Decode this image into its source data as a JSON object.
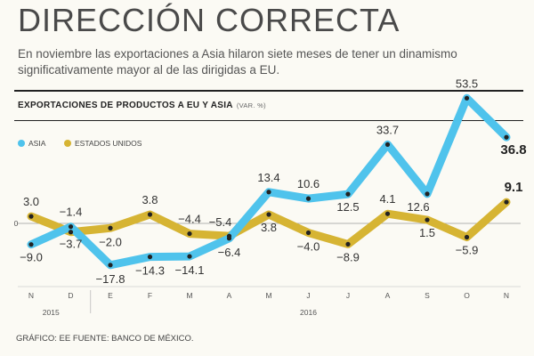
{
  "header": {
    "title": "DIRECCIÓN CORRECTA",
    "subtitle": "En noviembre las exportaciones a Asia hilaron siete meses de tener un dinamismo significativamente mayor al de las dirigidas a EU."
  },
  "footer": {
    "source": "GRÁFICO: EE  FUENTE: BANCO DE MÉXICO."
  },
  "colors": {
    "asia": "#4fc3ec",
    "eu": "#d6b433",
    "axis": "#999999"
  },
  "chart_data": {
    "type": "line",
    "title": "EXPORTACIONES DE PRODUCTOS A EU Y ASIA",
    "unit": "(VAR. %)",
    "categories": [
      "N",
      "D",
      "E",
      "F",
      "M",
      "A",
      "M",
      "J",
      "J",
      "A",
      "S",
      "O",
      "N"
    ],
    "years": [
      {
        "label": "2015",
        "from": 0,
        "to": 1
      },
      {
        "label": "2016",
        "from": 2,
        "to": 12
      }
    ],
    "zero_label": "0",
    "ylim": [
      -25,
      60
    ],
    "series": [
      {
        "name": "ASIA",
        "values": [
          -9.0,
          -1.4,
          -17.8,
          -14.3,
          -14.1,
          -6.4,
          13.4,
          10.6,
          12.5,
          33.7,
          12.6,
          53.5,
          36.8
        ],
        "labels": [
          "−9.0",
          "−1.4",
          "−17.8",
          "−14.3",
          "−14.1",
          "−6.4",
          "13.4",
          "10.6",
          "12.5",
          "33.7",
          "12.6",
          "53.5",
          "36.8"
        ]
      },
      {
        "name": "ESTADOS UNIDOS",
        "values": [
          3.0,
          -3.7,
          -2.0,
          3.8,
          -4.4,
          -5.4,
          3.8,
          -4.0,
          -8.9,
          4.1,
          1.5,
          -5.9,
          9.1
        ],
        "labels": [
          "3.0",
          "−3.7",
          "−2.0",
          "3.8",
          "−4.4",
          "−5.4",
          "3.8",
          "−4.0",
          "−8.9",
          "4.1",
          "1.5",
          "−5.9",
          "9.1"
        ]
      }
    ]
  }
}
